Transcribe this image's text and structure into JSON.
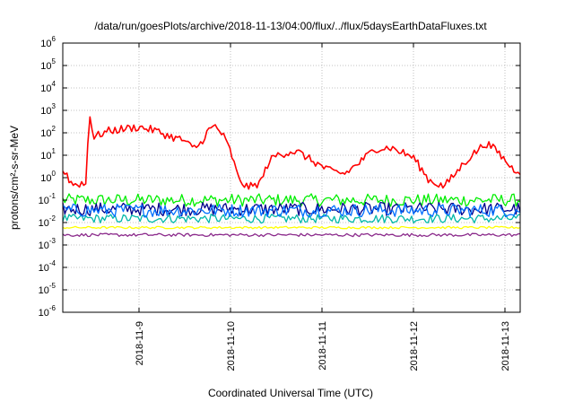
{
  "chart_data": {
    "type": "line",
    "title": "/data/run/goesPlots/archive/2018-11-13/04:00/flux/../flux/5daysEarthDataFluxes.txt",
    "xlabel": "Coordinated Universal Time (UTC)",
    "ylabel": "protons/cm²-s-sr-MeV",
    "yscale": "log",
    "ylim": [
      1e-06,
      1000000.0
    ],
    "xlim": [
      "2018-11-08 04:00",
      "2018-11-13 04:00"
    ],
    "grid": true,
    "y_ticks": [
      {
        "base": "10",
        "exp": "6"
      },
      {
        "base": "10",
        "exp": "5"
      },
      {
        "base": "10",
        "exp": "4"
      },
      {
        "base": "10",
        "exp": "3"
      },
      {
        "base": "10",
        "exp": "2"
      },
      {
        "base": "10",
        "exp": "1"
      },
      {
        "base": "10",
        "exp": "0"
      },
      {
        "base": "10",
        "exp": "-1"
      },
      {
        "base": "10",
        "exp": "-2"
      },
      {
        "base": "10",
        "exp": "-3"
      },
      {
        "base": "10",
        "exp": "-4"
      },
      {
        "base": "10",
        "exp": "-5"
      },
      {
        "base": "10",
        "exp": "-6"
      }
    ],
    "x_ticks": [
      "2018-11-9",
      "2018-11-10",
      "2018-11-11",
      "2018-11-12",
      "2018-11-13"
    ],
    "series": [
      {
        "color": "#ff0000",
        "x": [
          "2018-11-08 04:00",
          "2018-11-08 05:00",
          "2018-11-08 06:00",
          "2018-11-08 07:00",
          "2018-11-08 08:00",
          "2018-11-08 09:00",
          "2018-11-08 10:00",
          "2018-11-08 11:00",
          "2018-11-08 12:00",
          "2018-11-08 14:00",
          "2018-11-08 16:00",
          "2018-11-08 20:00",
          "2018-11-09 00:00",
          "2018-11-09 04:00",
          "2018-11-09 08:00",
          "2018-11-09 12:00",
          "2018-11-09 14:00",
          "2018-11-09 16:00",
          "2018-11-09 18:00",
          "2018-11-09 20:00",
          "2018-11-09 22:00",
          "2018-11-10 00:00",
          "2018-11-10 02:00",
          "2018-11-10 04:00",
          "2018-11-10 06:00",
          "2018-11-10 08:00",
          "2018-11-10 10:00",
          "2018-11-10 12:00",
          "2018-11-10 14:00",
          "2018-11-10 16:00",
          "2018-11-10 18:00",
          "2018-11-10 22:00",
          "2018-11-11 02:00",
          "2018-11-11 06:00",
          "2018-11-11 10:00",
          "2018-11-11 14:00",
          "2018-11-11 18:00",
          "2018-11-12 00:00",
          "2018-11-12 04:00",
          "2018-11-12 08:00",
          "2018-11-12 11:00",
          "2018-11-12 13:00",
          "2018-11-12 15:00",
          "2018-11-12 19:00",
          "2018-11-12 22:00",
          "2018-11-13 00:00",
          "2018-11-13 02:00",
          "2018-11-13 04:00"
        ],
        "values": [
          2,
          1.5,
          0.6,
          0.5,
          0.5,
          0.6,
          0.4,
          1000,
          60,
          90,
          120,
          150,
          180,
          130,
          70,
          45,
          20,
          30,
          120,
          200,
          80,
          15,
          1,
          0.4,
          0.4,
          0.7,
          5,
          10,
          12,
          15,
          13,
          5,
          2,
          1.5,
          5,
          20,
          22,
          8,
          0.8,
          0.4,
          1.5,
          4,
          9,
          35,
          15,
          6,
          2.5,
          2
        ]
      },
      {
        "color": "#00ee00",
        "x": [
          "2018-11-08 04:00",
          "2018-11-13 04:00"
        ],
        "values": [
          0.1,
          0.1
        ]
      },
      {
        "color": "#0070ff",
        "x": [
          "2018-11-08 04:00",
          "2018-11-13 04:00"
        ],
        "values": [
          0.035,
          0.035
        ]
      },
      {
        "color": "#00008b",
        "x": [
          "2018-11-08 04:00",
          "2018-11-13 04:00"
        ],
        "values": [
          0.04,
          0.04
        ]
      },
      {
        "color": "#00b7a8",
        "x": [
          "2018-11-08 04:00",
          "2018-11-13 04:00"
        ],
        "values": [
          0.015,
          0.015
        ]
      },
      {
        "color": "#ffff00",
        "x": [
          "2018-11-08 04:00",
          "2018-11-13 04:00"
        ],
        "values": [
          0.006,
          0.006
        ]
      },
      {
        "color": "#8b2a8b",
        "x": [
          "2018-11-08 04:00",
          "2018-11-13 04:00"
        ],
        "values": [
          0.0028,
          0.0028
        ]
      }
    ]
  }
}
